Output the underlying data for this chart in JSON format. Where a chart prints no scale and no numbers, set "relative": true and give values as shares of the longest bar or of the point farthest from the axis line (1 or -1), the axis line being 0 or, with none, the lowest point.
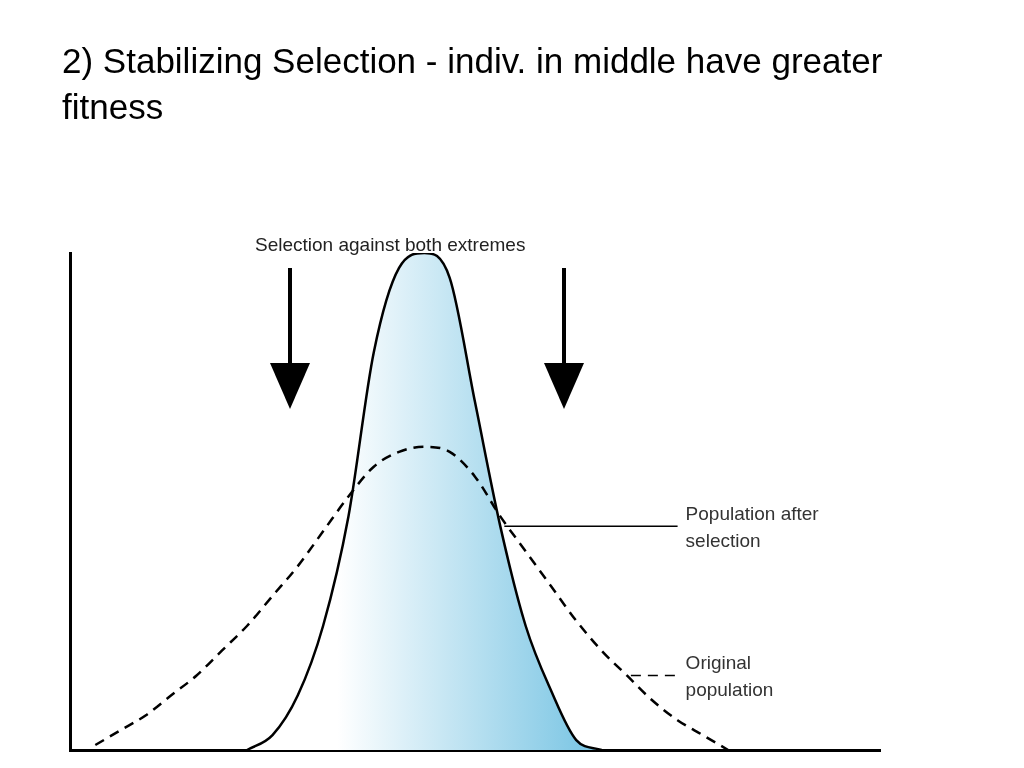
{
  "chart_data": {
    "type": "area",
    "title": "2)  Stabilizing Selection - indiv. in middle have greater fitness",
    "relative": true,
    "grid": false,
    "legend": "right",
    "marker": "none",
    "annotations": [
      "Selection against both extremes"
    ],
    "categories": [
      null,
      null,
      null,
      null,
      null,
      null,
      null,
      null,
      null,
      null,
      null,
      null,
      null,
      null,
      null,
      null,
      null,
      null,
      null,
      null,
      null,
      null,
      null,
      null,
      null,
      null,
      null,
      null,
      null,
      null,
      null,
      null,
      null
    ],
    "series": [
      {
        "name": "Population after selection",
        "type": "area",
        "color": "#7cc6e4",
        "line_style": "solid",
        "values": [
          null,
          null,
          null,
          null,
          null,
          null,
          null,
          0,
          0.03,
          0.11,
          0.25,
          0.47,
          0.8,
          0.97,
          1,
          0.95,
          0.7,
          0.45,
          0.25,
          0.12,
          0.02,
          0,
          null,
          null,
          null,
          null,
          null,
          null,
          null,
          null,
          null,
          null,
          null
        ]
      },
      {
        "name": "Original population",
        "type": "line",
        "color": "#000000",
        "line_style": "dashed",
        "values": [
          null,
          0.01,
          0.04,
          0.07,
          0.11,
          0.15,
          0.2,
          0.25,
          0.31,
          0.37,
          0.44,
          0.51,
          0.57,
          0.6,
          0.61,
          0.6,
          0.55,
          0.47,
          0.4,
          0.33,
          0.26,
          0.2,
          0.15,
          0.1,
          0.06,
          0.03,
          0,
          null,
          null,
          null,
          null,
          null,
          null
        ]
      }
    ]
  }
}
